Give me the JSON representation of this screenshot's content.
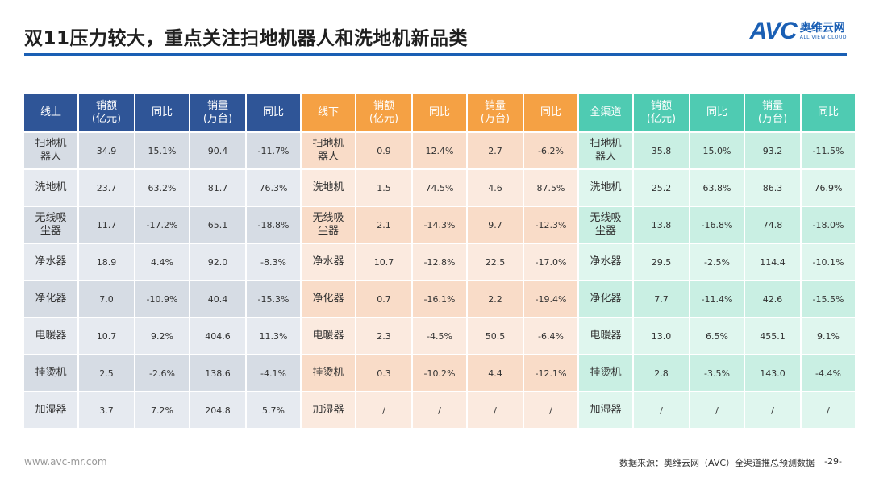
{
  "header": {
    "title": "双11压力较大，重点关注扫地机器人和洗地机新品类",
    "logo_avc": "AVC",
    "logo_cn": "奥维云网",
    "logo_en": "ALL VIEW CLOUD"
  },
  "table": {
    "headers": {
      "online": "线上",
      "offline": "线下",
      "all": "全渠道",
      "sales_amount": "销额\n(亿元)",
      "yoy": "同比",
      "sales_volume": "销量\n(万台)"
    },
    "rows": [
      {
        "cat": "扫地机\n器人",
        "on": [
          "34.9",
          "15.1%",
          "90.4",
          "-11.7%"
        ],
        "off": [
          "0.9",
          "12.4%",
          "2.7",
          "-6.2%"
        ],
        "all": [
          "35.8",
          "15.0%",
          "93.2",
          "-11.5%"
        ]
      },
      {
        "cat": "洗地机",
        "on": [
          "23.7",
          "63.2%",
          "81.7",
          "76.3%"
        ],
        "off": [
          "1.5",
          "74.5%",
          "4.6",
          "87.5%"
        ],
        "all": [
          "25.2",
          "63.8%",
          "86.3",
          "76.9%"
        ]
      },
      {
        "cat": "无线吸\n尘器",
        "on": [
          "11.7",
          "-17.2%",
          "65.1",
          "-18.8%"
        ],
        "off": [
          "2.1",
          "-14.3%",
          "9.7",
          "-12.3%"
        ],
        "all": [
          "13.8",
          "-16.8%",
          "74.8",
          "-18.0%"
        ]
      },
      {
        "cat": "净水器",
        "on": [
          "18.9",
          "4.4%",
          "92.0",
          "-8.3%"
        ],
        "off": [
          "10.7",
          "-12.8%",
          "22.5",
          "-17.0%"
        ],
        "all": [
          "29.5",
          "-2.5%",
          "114.4",
          "-10.1%"
        ]
      },
      {
        "cat": "净化器",
        "on": [
          "7.0",
          "-10.9%",
          "40.4",
          "-15.3%"
        ],
        "off": [
          "0.7",
          "-16.1%",
          "2.2",
          "-19.4%"
        ],
        "all": [
          "7.7",
          "-11.4%",
          "42.6",
          "-15.5%"
        ]
      },
      {
        "cat": "电暖器",
        "on": [
          "10.7",
          "9.2%",
          "404.6",
          "11.3%"
        ],
        "off": [
          "2.3",
          "-4.5%",
          "50.5",
          "-6.4%"
        ],
        "all": [
          "13.0",
          "6.5%",
          "455.1",
          "9.1%"
        ]
      },
      {
        "cat": "挂烫机",
        "on": [
          "2.5",
          "-2.6%",
          "138.6",
          "-4.1%"
        ],
        "off": [
          "0.3",
          "-10.2%",
          "4.4",
          "-12.1%"
        ],
        "all": [
          "2.8",
          "-3.5%",
          "143.0",
          "-4.4%"
        ]
      },
      {
        "cat": "加湿器",
        "on": [
          "3.7",
          "7.2%",
          "204.8",
          "5.7%"
        ],
        "off": [
          "/",
          "/",
          "/",
          "/"
        ],
        "all": [
          "/",
          "/",
          "/",
          "/"
        ]
      }
    ]
  },
  "footer": {
    "website": "www.avc-mr.com",
    "source": "数据来源：奥维云网（AVC）全渠道推总预测数据",
    "page": "-29-"
  },
  "colors": {
    "online_header": "#2f5597",
    "offline_header": "#f5a144",
    "all_header": "#4fcbb2",
    "brand": "#1a5fb4"
  }
}
